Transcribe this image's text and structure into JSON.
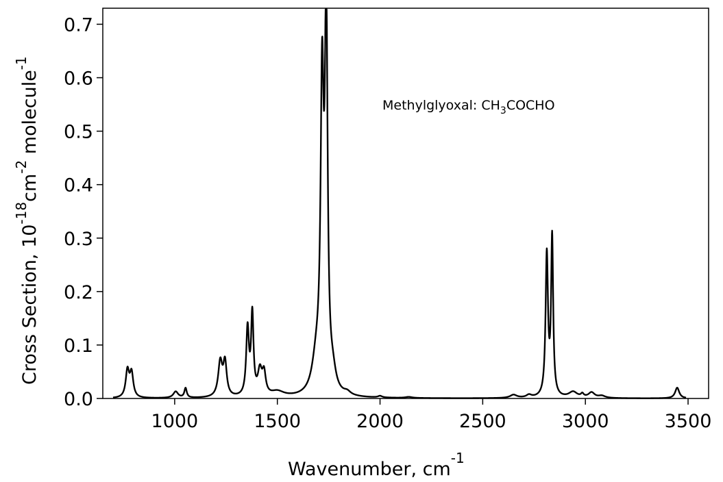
{
  "chart_data": {
    "type": "line",
    "xlabel": {
      "text": "Wavenumber, cm",
      "sup": "-1"
    },
    "ylabel": {
      "prefix": "Cross Section, 10",
      "exp1": "-18",
      "mid": "cm",
      "exp2": "-2",
      "post": " molecule",
      "exp3": "-1"
    },
    "annotation": {
      "text": "Methylglyoxal: CH",
      "sub": "3",
      "rest": "COCHO"
    },
    "xlim": [
      650,
      3600
    ],
    "ylim": [
      0,
      0.73
    ],
    "x_ticks": [
      1000,
      1500,
      2000,
      2500,
      3000,
      3500
    ],
    "y_ticks": [
      0.0,
      0.1,
      0.2,
      0.3,
      0.4,
      0.5,
      0.6,
      0.7
    ],
    "y_tick_labels": [
      "0.0",
      "0.1",
      "0.2",
      "0.3",
      "0.4",
      "0.5",
      "0.6",
      "0.7"
    ],
    "grid": false,
    "colors": {
      "line": "#000000",
      "axes": "#000000",
      "background": "#ffffff"
    },
    "baseline": 0.0,
    "peaks": [
      {
        "center": 770,
        "height": 0.05,
        "width": 10
      },
      {
        "center": 790,
        "height": 0.045,
        "width": 10
      },
      {
        "center": 1005,
        "height": 0.012,
        "width": 14
      },
      {
        "center": 1053,
        "height": 0.018,
        "width": 7
      },
      {
        "center": 1222,
        "height": 0.065,
        "width": 12
      },
      {
        "center": 1245,
        "height": 0.062,
        "width": 10
      },
      {
        "center": 1355,
        "height": 0.125,
        "width": 8
      },
      {
        "center": 1378,
        "height": 0.15,
        "width": 7
      },
      {
        "center": 1415,
        "height": 0.045,
        "width": 12
      },
      {
        "center": 1435,
        "height": 0.04,
        "width": 10
      },
      {
        "center": 1500,
        "height": 0.01,
        "width": 40
      },
      {
        "center": 1690,
        "height": 0.06,
        "width": 25
      },
      {
        "center": 1718,
        "height": 0.55,
        "width": 9
      },
      {
        "center": 1738,
        "height": 0.69,
        "width": 8
      },
      {
        "center": 1770,
        "height": 0.03,
        "width": 18
      },
      {
        "center": 1840,
        "height": 0.006,
        "width": 20
      },
      {
        "center": 2000,
        "height": 0.003,
        "width": 12
      },
      {
        "center": 2140,
        "height": 0.002,
        "width": 20
      },
      {
        "center": 2650,
        "height": 0.006,
        "width": 20
      },
      {
        "center": 2725,
        "height": 0.005,
        "width": 15
      },
      {
        "center": 2812,
        "height": 0.265,
        "width": 7
      },
      {
        "center": 2838,
        "height": 0.295,
        "width": 6
      },
      {
        "center": 2940,
        "height": 0.011,
        "width": 25
      },
      {
        "center": 2985,
        "height": 0.006,
        "width": 8
      },
      {
        "center": 3030,
        "height": 0.01,
        "width": 18
      },
      {
        "center": 3080,
        "height": 0.004,
        "width": 20
      },
      {
        "center": 3447,
        "height": 0.02,
        "width": 12
      }
    ]
  }
}
